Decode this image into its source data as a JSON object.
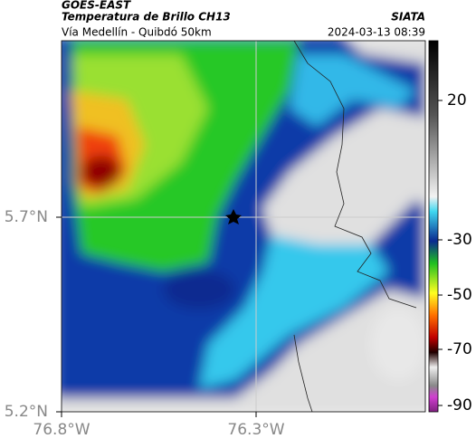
{
  "header": {
    "title": "GOES-EAST",
    "subtitle": "Temperatura de Brillo CH13",
    "route": "Vía Medellín - Quibdó 50km",
    "source": "SIATA",
    "datetime": "2024-03-13 08:39"
  },
  "axes": {
    "lat_labels": [
      "5.7°N",
      "5.2°N"
    ],
    "lon_labels": [
      "76.8°W",
      "76.3°W"
    ]
  },
  "colorbar": {
    "ticks": [
      20,
      -30,
      -50,
      -70,
      -90
    ]
  }
}
